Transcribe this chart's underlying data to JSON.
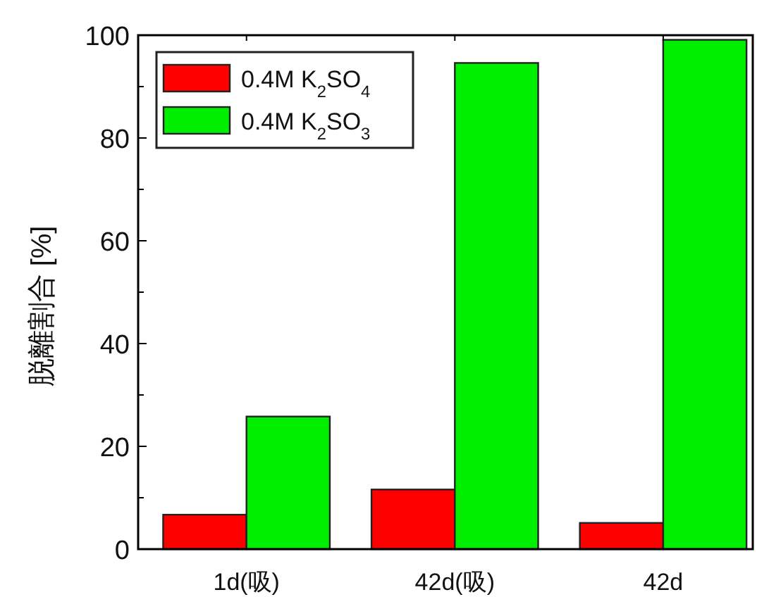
{
  "chart_data": {
    "type": "bar",
    "ylabel": "脱離割合 [%]",
    "categories": [
      "1d(吸)",
      "42d(吸)",
      "42d"
    ],
    "series": [
      {
        "name": "0.4M K$_{2}$SO$_{4}$",
        "color": "#ff0000",
        "values": [
          6.7,
          11.6,
          5.1
        ]
      },
      {
        "name": "0.4M K$_{2}$SO$_{3}$",
        "color": "#00ee00",
        "values": [
          25.8,
          94.6,
          99.1
        ]
      }
    ],
    "ylim": [
      0,
      100
    ],
    "yticks": [
      0,
      {
        "value": 10,
        "label": null
      },
      20,
      {
        "value": 30,
        "label": null
      },
      40,
      {
        "value": 50,
        "label": null
      },
      60,
      {
        "value": 70,
        "label": null
      },
      80,
      {
        "value": 90,
        "label": null
      },
      100
    ],
    "grid": false,
    "legend": "top left"
  }
}
